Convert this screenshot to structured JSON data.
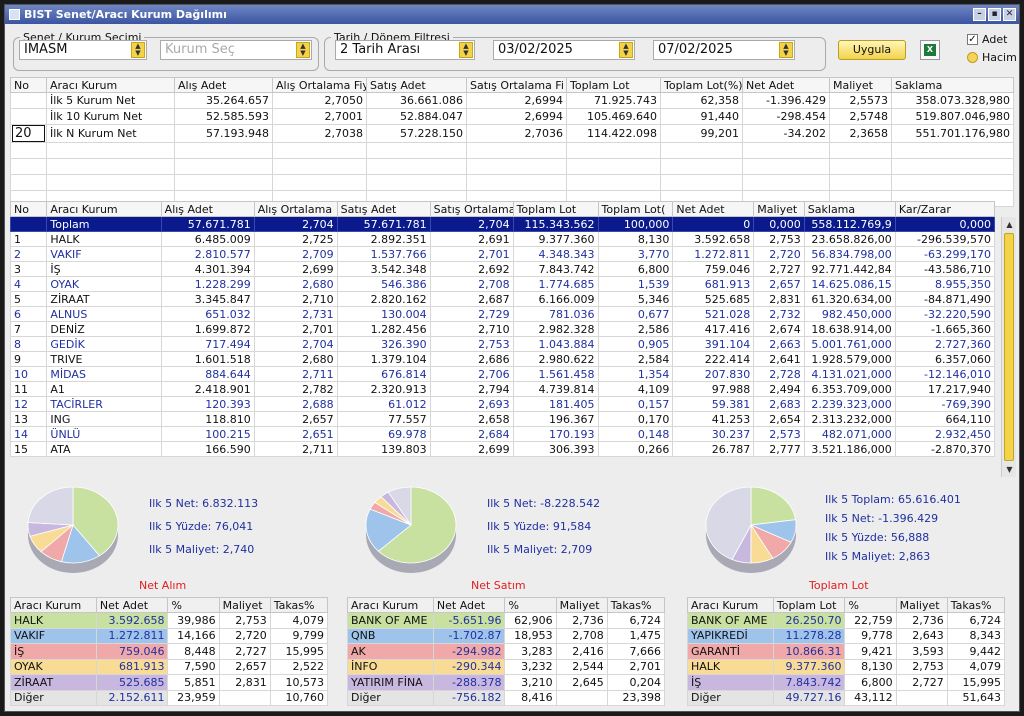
{
  "window": {
    "title": "BIST Senet/Aracı Kurum Dağılımı"
  },
  "filters": {
    "stock_legend": "Senet / Kurum Seçimi",
    "stock_value": "IMASM",
    "broker_placeholder": "Kurum Seç",
    "date_legend": "Tarih / Dönem Filtresi",
    "mode_value": "2 Tarih Arası",
    "date_from": "03/02/2025",
    "date_to": "07/02/2025",
    "apply_label": "Uygula",
    "option_adet": "Adet",
    "option_hacim": "Hacim"
  },
  "summary": {
    "headers": [
      "No",
      "Aracı Kurum",
      "Alış Adet",
      "Alış Ortalama Fiy",
      "Satış Adet",
      "Satış Ortalama Fi",
      "Toplam Lot",
      "Toplam Lot(%)",
      "Net Adet",
      "Maliyet",
      "Saklama"
    ],
    "n_value": "20",
    "rows": [
      [
        "",
        "İlk 5 Kurum Net",
        "35.264.657",
        "2,7050",
        "36.661.086",
        "2,6994",
        "71.925.743",
        "62,358",
        "-1.396.429",
        "2,5573",
        "358.073.328,980"
      ],
      [
        "",
        "İlk 10 Kurum Net",
        "52.585.593",
        "2,7001",
        "52.884.047",
        "2,6994",
        "105.469.640",
        "91,440",
        "-298.454",
        "2,5748",
        "519.807.046,980"
      ],
      [
        "",
        "İlk N Kurum Net",
        "57.193.948",
        "2,7038",
        "57.228.150",
        "2,7036",
        "114.422.098",
        "99,201",
        "-34.202",
        "2,3658",
        "551.701.176,980"
      ]
    ]
  },
  "main": {
    "headers": [
      "No",
      "Aracı Kurum",
      "Alış Adet",
      "Alış Ortalama",
      "Satış Adet",
      "Satış Ortalama",
      "Toplam Lot",
      "Toplam Lot(",
      "Net Adet",
      "Maliyet",
      "Saklama",
      "Kar/Zarar"
    ],
    "rows": [
      [
        "",
        "Toplam",
        "57.671.781",
        "2,704",
        "57.671.781",
        "2,704",
        "115.343.562",
        "100,000",
        "0",
        "0,000",
        "558.112.769,9",
        "0,000"
      ],
      [
        "1",
        "HALK",
        "6.485.009",
        "2,725",
        "2.892.351",
        "2,691",
        "9.377.360",
        "8,130",
        "3.592.658",
        "2,753",
        "23.658.826,00",
        "-296.539,570"
      ],
      [
        "2",
        "VAKIF",
        "2.810.577",
        "2,709",
        "1.537.766",
        "2,701",
        "4.348.343",
        "3,770",
        "1.272.811",
        "2,720",
        "56.834.798,00",
        "-63.299,170"
      ],
      [
        "3",
        "İŞ",
        "4.301.394",
        "2,699",
        "3.542.348",
        "2,692",
        "7.843.742",
        "6,800",
        "759.046",
        "2,727",
        "92.771.442,84",
        "-43.586,710"
      ],
      [
        "4",
        "OYAK",
        "1.228.299",
        "2,680",
        "546.386",
        "2,708",
        "1.774.685",
        "1,539",
        "681.913",
        "2,657",
        "14.625.086,15",
        "8.955,350"
      ],
      [
        "5",
        "ZİRAAT",
        "3.345.847",
        "2,710",
        "2.820.162",
        "2,687",
        "6.166.009",
        "5,346",
        "525.685",
        "2,831",
        "61.320.634,00",
        "-84.871,490"
      ],
      [
        "6",
        "ALNUS",
        "651.032",
        "2,731",
        "130.004",
        "2,729",
        "781.036",
        "0,677",
        "521.028",
        "2,732",
        "982.450,000",
        "-32.220,590"
      ],
      [
        "7",
        "DENİZ",
        "1.699.872",
        "2,701",
        "1.282.456",
        "2,710",
        "2.982.328",
        "2,586",
        "417.416",
        "2,674",
        "18.638.914,00",
        "-1.665,360"
      ],
      [
        "8",
        "GEDİK",
        "717.494",
        "2,704",
        "326.390",
        "2,753",
        "1.043.884",
        "0,905",
        "391.104",
        "2,663",
        "5.001.761,000",
        "2.727,360"
      ],
      [
        "9",
        "TRIVE",
        "1.601.518",
        "2,680",
        "1.379.104",
        "2,686",
        "2.980.622",
        "2,584",
        "222.414",
        "2,641",
        "1.928.579,000",
        "6.357,060"
      ],
      [
        "10",
        "MİDAS",
        "884.644",
        "2,711",
        "676.814",
        "2,706",
        "1.561.458",
        "1,354",
        "207.830",
        "2,728",
        "4.131.021,000",
        "-12.146,010"
      ],
      [
        "11",
        "A1",
        "2.418.901",
        "2,782",
        "2.320.913",
        "2,794",
        "4.739.814",
        "4,109",
        "97.988",
        "2,494",
        "6.353.709,000",
        "17.217,940"
      ],
      [
        "12",
        "TACİRLER",
        "120.393",
        "2,688",
        "61.012",
        "2,693",
        "181.405",
        "0,157",
        "59.381",
        "2,683",
        "2.239.323,000",
        "-769,390"
      ],
      [
        "13",
        "ING",
        "118.810",
        "2,657",
        "77.557",
        "2,658",
        "196.367",
        "0,170",
        "41.253",
        "2,654",
        "2.313.232,000",
        "664,110"
      ],
      [
        "14",
        "ÜNLÜ",
        "100.215",
        "2,651",
        "69.978",
        "2,684",
        "170.193",
        "0,148",
        "30.237",
        "2,573",
        "482.071,000",
        "2.932,450"
      ],
      [
        "15",
        "ATA",
        "166.590",
        "2,711",
        "139.803",
        "2,699",
        "306.393",
        "0,266",
        "26.787",
        "2,777",
        "3.521.186,000",
        "-2.870,370"
      ]
    ]
  },
  "panels": [
    {
      "title": "Net Alım",
      "stats": [
        "Ilk 5 Net: 6.832.113",
        "Ilk 5 Yüzde: 76,041",
        "Ilk 5 Maliyet: 2,740"
      ],
      "headers": [
        "Aracı Kurum",
        "Net Adet",
        "%",
        "Maliyet",
        "Takas%"
      ],
      "rows": [
        [
          "HALK",
          "3.592.658",
          "39,986",
          "2,753",
          "4,079"
        ],
        [
          "VAKIF",
          "1.272.811",
          "14,166",
          "2,720",
          "9,799"
        ],
        [
          "İŞ",
          "759.046",
          "8,448",
          "2,727",
          "15,995"
        ],
        [
          "OYAK",
          "681.913",
          "7,590",
          "2,657",
          "2,522"
        ],
        [
          "ZİRAAT",
          "525.685",
          "5,851",
          "2,831",
          "10,573"
        ],
        [
          "Diğer",
          "2.152.611",
          "23,959",
          "",
          "10,760"
        ]
      ],
      "row_colors": [
        "#c8e0a0",
        "#9fc4ec",
        "#f0a8a8",
        "#f8dc96",
        "#c8b8e0",
        "#e4e4e4"
      ],
      "slices": [
        39.986,
        14.166,
        8.448,
        7.59,
        5.851,
        23.959
      ]
    },
    {
      "title": "Net Satım",
      "stats": [
        "Ilk 5 Net: -8.228.542",
        "Ilk 5 Yüzde: 91,584",
        "Ilk 5 Maliyet: 2,709"
      ],
      "headers": [
        "Aracı Kurum",
        "Net Adet",
        "%",
        "Maliyet",
        "Takas%"
      ],
      "rows": [
        [
          "BANK OF AME",
          "-5.651.96",
          "62,906",
          "2,736",
          "6,724"
        ],
        [
          "QNB",
          "-1.702.87",
          "18,953",
          "2,708",
          "1,475"
        ],
        [
          "AK",
          "-294.982",
          "3,283",
          "2,416",
          "7,666"
        ],
        [
          "İNFO",
          "-290.344",
          "3,232",
          "2,544",
          "2,701"
        ],
        [
          "YATIRIM FİNA",
          "-288.378",
          "3,210",
          "2,645",
          "0,204"
        ],
        [
          "Diğer",
          "-756.182",
          "8,416",
          "",
          "23,398"
        ]
      ],
      "row_colors": [
        "#c8e0a0",
        "#9fc4ec",
        "#f0a8a8",
        "#f8dc96",
        "#c8b8e0",
        "#e4e4e4"
      ],
      "slices": [
        62.906,
        18.953,
        3.283,
        3.232,
        3.21,
        8.416
      ]
    },
    {
      "title": "Toplam Lot",
      "stats": [
        "Ilk 5 Toplam: 65.616.401",
        "Ilk 5 Net: -1.396.429",
        "Ilk 5 Yüzde: 56,888",
        "Ilk 5 Maliyet: 2,863"
      ],
      "headers": [
        "Aracı Kurum",
        "Toplam Lot",
        "%",
        "Maliyet",
        "Takas%"
      ],
      "rows": [
        [
          "BANK OF AME",
          "26.250.70",
          "22,759",
          "2,736",
          "6,724"
        ],
        [
          "YAPIKREDİ",
          "11.278.28",
          "9,778",
          "2,643",
          "8,343"
        ],
        [
          "GARANTİ",
          "10.866.31",
          "9,421",
          "3,593",
          "9,442"
        ],
        [
          "HALK",
          "9.377.360",
          "8,130",
          "2,753",
          "4,079"
        ],
        [
          "İŞ",
          "7.843.742",
          "6,800",
          "2,727",
          "15,995"
        ],
        [
          "Diğer",
          "49.727.16",
          "43,112",
          "",
          "51,643"
        ]
      ],
      "row_colors": [
        "#c8e0a0",
        "#9fc4ec",
        "#f0a8a8",
        "#f8dc96",
        "#c8b8e0",
        "#e4e4e4"
      ],
      "slices": [
        22.759,
        9.778,
        9.421,
        8.13,
        6.8,
        43.112
      ]
    }
  ]
}
